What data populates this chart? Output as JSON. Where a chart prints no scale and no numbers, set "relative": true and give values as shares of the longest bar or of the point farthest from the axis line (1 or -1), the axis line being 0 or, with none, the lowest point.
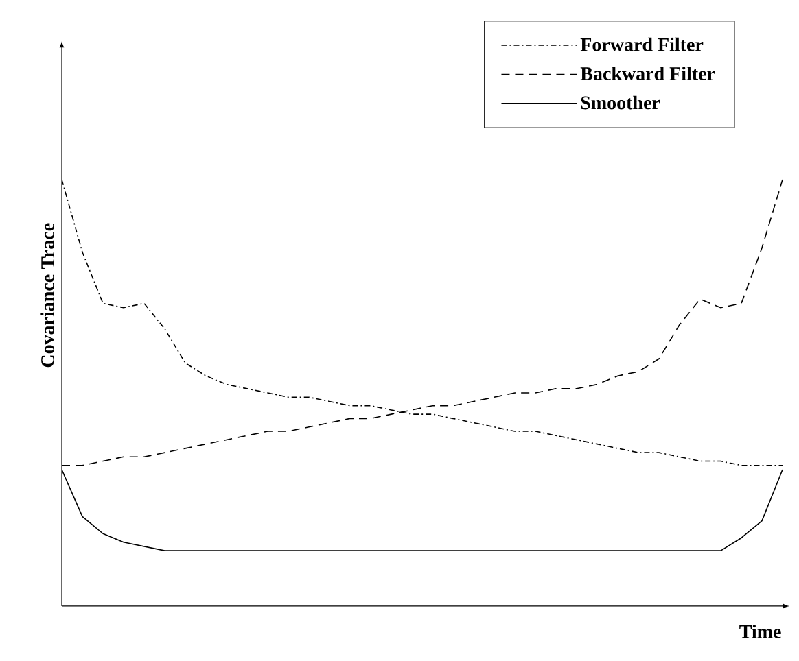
{
  "chart_data": {
    "type": "line",
    "relative": true,
    "xlabel": "Time",
    "ylabel": "Covariance Trace",
    "legend": "top right",
    "marker": "none",
    "categories": [
      null,
      null,
      null,
      null,
      null,
      null,
      null,
      null,
      null,
      null,
      null,
      null,
      null,
      null,
      null,
      null,
      null,
      null,
      null,
      null,
      null,
      null,
      null,
      null,
      null,
      null,
      null,
      null,
      null,
      null,
      null,
      null,
      null,
      null,
      null,
      null
    ],
    "series": [
      {
        "name": "Forward Filter",
        "color": "#000000",
        "line_style": "dashdot",
        "values": [
          1.0,
          0.83,
          0.71,
          0.7,
          0.71,
          0.65,
          0.57,
          0.54,
          0.52,
          0.51,
          0.5,
          0.49,
          0.49,
          0.48,
          0.47,
          0.47,
          0.46,
          0.45,
          0.45,
          0.44,
          0.43,
          0.42,
          0.41,
          0.41,
          0.4,
          0.39,
          0.38,
          0.37,
          0.36,
          0.36,
          0.35,
          0.34,
          0.34,
          0.33,
          0.33,
          0.33
        ]
      },
      {
        "name": "Backward Filter",
        "color": "#000000",
        "line_style": "dashed",
        "values": [
          0.33,
          0.33,
          0.34,
          0.35,
          0.35,
          0.36,
          0.37,
          0.38,
          0.39,
          0.4,
          0.41,
          0.41,
          0.42,
          0.43,
          0.44,
          0.44,
          0.45,
          0.46,
          0.47,
          0.47,
          0.48,
          0.49,
          0.5,
          0.5,
          0.51,
          0.51,
          0.52,
          0.54,
          0.55,
          0.58,
          0.66,
          0.72,
          0.7,
          0.71,
          0.84,
          1.0
        ]
      },
      {
        "name": "Smoother",
        "color": "#000000",
        "line_style": "solid",
        "values": [
          0.32,
          0.21,
          0.17,
          0.15,
          0.14,
          0.13,
          0.13,
          0.13,
          0.13,
          0.13,
          0.13,
          0.13,
          0.13,
          0.13,
          0.13,
          0.13,
          0.13,
          0.13,
          0.13,
          0.13,
          0.13,
          0.13,
          0.13,
          0.13,
          0.13,
          0.13,
          0.13,
          0.13,
          0.13,
          0.13,
          0.13,
          0.13,
          0.13,
          0.16,
          0.2,
          0.32
        ]
      }
    ]
  }
}
